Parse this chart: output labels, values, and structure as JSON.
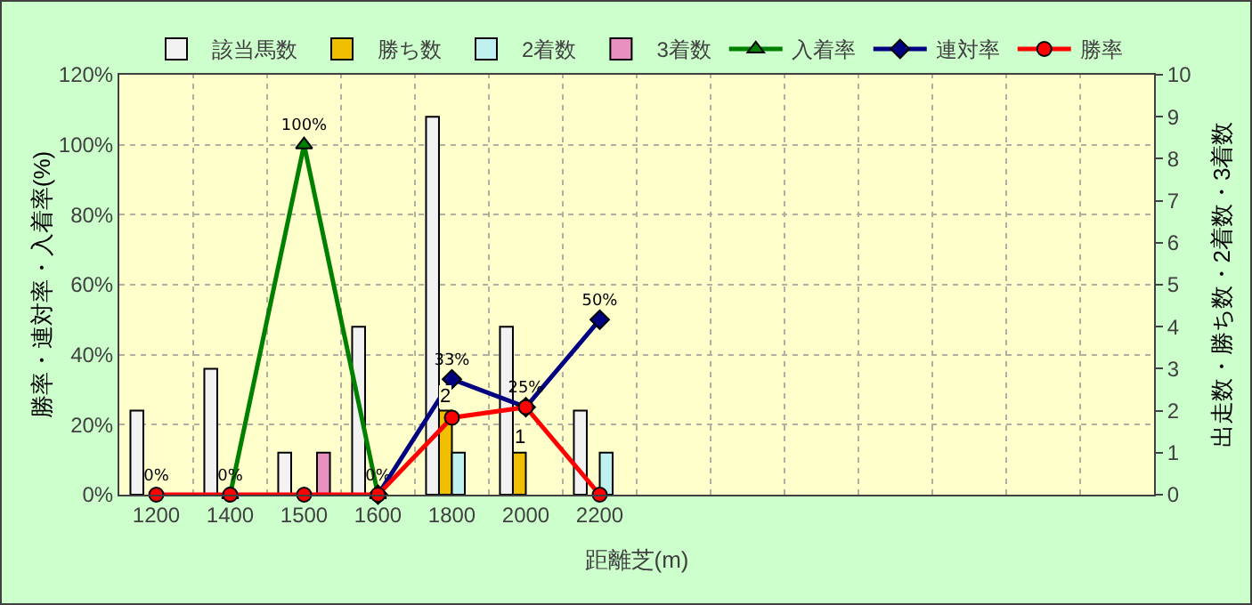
{
  "chart_data": {
    "type": "bar",
    "categories": [
      "1200",
      "1400",
      "1500",
      "1600",
      "1800",
      "2000",
      "2200",
      null,
      null,
      null,
      null,
      null,
      null,
      null
    ],
    "xlabel": "距離芝(m)",
    "ylabel": "勝率・連対率・入着率(%)",
    "y2label": "出走数・勝ち数・2着数・3着数",
    "ylim": [
      0,
      120
    ],
    "yticks": [
      {
        "value": 0,
        "label": "0%"
      },
      {
        "value": 20,
        "label": "20%"
      },
      {
        "value": 40,
        "label": "40%"
      },
      {
        "value": 60,
        "label": "60%"
      },
      {
        "value": 80,
        "label": "80%"
      },
      {
        "value": 100,
        "label": "100%"
      },
      {
        "value": 120,
        "label": "120%"
      }
    ],
    "y2lim": [
      0,
      10
    ],
    "y2ticks": [
      0,
      1,
      2,
      3,
      4,
      5,
      6,
      7,
      8,
      9,
      10
    ],
    "grid": true,
    "legend": "top",
    "series": [
      {
        "name": "該当馬数",
        "axis": "y2",
        "color": "#f2f2f2",
        "values": [
          2,
          3,
          1,
          4,
          9,
          4,
          2,
          null,
          null,
          null,
          null,
          null,
          null,
          null
        ]
      },
      {
        "name": "勝ち数",
        "axis": "y2",
        "color": "#f0c000",
        "values": [
          null,
          null,
          null,
          null,
          2,
          1,
          null,
          null,
          null,
          null,
          null,
          null,
          null,
          null
        ],
        "value_labels": [
          null,
          null,
          null,
          null,
          "2",
          "1",
          null,
          null,
          null,
          null,
          null,
          null,
          null,
          null
        ]
      },
      {
        "name": "2着数",
        "axis": "y2",
        "color": "#c0f0f0",
        "values": [
          null,
          null,
          null,
          null,
          1,
          null,
          1,
          null,
          null,
          null,
          null,
          null,
          null,
          null
        ]
      },
      {
        "name": "3着数",
        "axis": "y2",
        "color": "#e890c0",
        "values": [
          null,
          null,
          1,
          null,
          null,
          null,
          null,
          null,
          null,
          null,
          null,
          null,
          null,
          null
        ]
      },
      {
        "name": "入着率",
        "type": "line",
        "color": "#008000",
        "marker": "triangle",
        "values": [
          null,
          0,
          100,
          0,
          null,
          null,
          null,
          null,
          null,
          null,
          null,
          null,
          null,
          null
        ],
        "value_labels": [
          null,
          "0%",
          "100%",
          "0%",
          null,
          null,
          null,
          null,
          null,
          null,
          null,
          null,
          null,
          null
        ]
      },
      {
        "name": "連対率",
        "type": "line",
        "color": "#000080",
        "marker": "diamond",
        "values": [
          null,
          null,
          null,
          0,
          33,
          25,
          50,
          null,
          null,
          null,
          null,
          null,
          null,
          null
        ],
        "value_labels": [
          null,
          null,
          null,
          null,
          "33%",
          "25%",
          "50%",
          null,
          null,
          null,
          null,
          null,
          null,
          null
        ]
      },
      {
        "name": "勝率",
        "type": "line",
        "color": "#ff0000",
        "marker": "circle",
        "values": [
          0,
          0,
          0,
          0,
          22,
          25,
          0,
          null,
          null,
          null,
          null,
          null,
          null,
          null
        ],
        "value_labels": [
          "0%",
          null,
          null,
          null,
          null,
          null,
          null,
          null,
          null,
          null,
          null,
          null,
          null,
          null
        ]
      }
    ]
  }
}
